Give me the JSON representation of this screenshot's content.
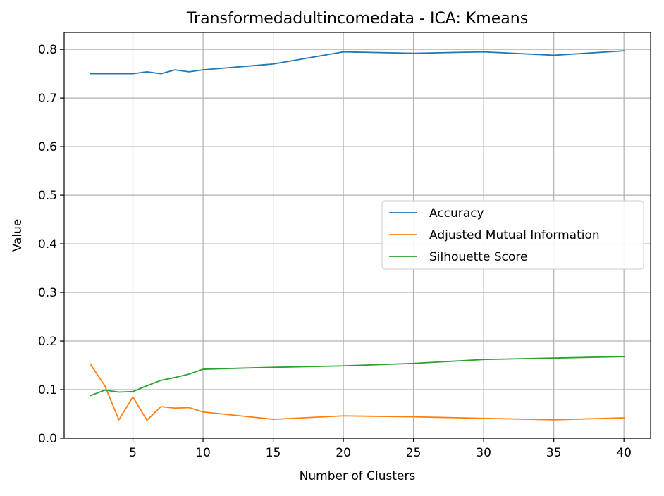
{
  "chart_data": {
    "type": "line",
    "title": "Transformedadultincomedata - ICA: Kmeans",
    "xlabel": "Number of Clusters",
    "ylabel": "Value",
    "x": [
      2,
      3,
      4,
      5,
      6,
      7,
      8,
      9,
      10,
      15,
      20,
      25,
      30,
      35,
      40
    ],
    "xlim": [
      0.1,
      41.9
    ],
    "ylim": [
      0.0,
      0.835
    ],
    "xticks": [
      5,
      10,
      15,
      20,
      25,
      30,
      35,
      40
    ],
    "yticks": [
      0.0,
      0.1,
      0.2,
      0.3,
      0.4,
      0.5,
      0.6,
      0.7,
      0.8
    ],
    "grid": true,
    "legend_position": "center-right",
    "series": [
      {
        "name": "Accuracy",
        "color": "#1f77b4",
        "values": [
          0.75,
          0.75,
          0.75,
          0.75,
          0.754,
          0.75,
          0.758,
          0.754,
          0.758,
          0.77,
          0.795,
          0.792,
          0.795,
          0.788,
          0.797
        ]
      },
      {
        "name": "Adjusted Mutual Information",
        "color": "#ff7f0e",
        "values": [
          0.151,
          0.108,
          0.038,
          0.085,
          0.037,
          0.065,
          0.062,
          0.063,
          0.054,
          0.039,
          0.046,
          0.044,
          0.041,
          0.038,
          0.042
        ]
      },
      {
        "name": "Silhouette Score",
        "color": "#2ca02c",
        "values": [
          0.088,
          0.099,
          0.095,
          0.096,
          0.108,
          0.119,
          0.125,
          0.132,
          0.142,
          0.146,
          0.149,
          0.154,
          0.162,
          0.165,
          0.168
        ]
      }
    ]
  }
}
